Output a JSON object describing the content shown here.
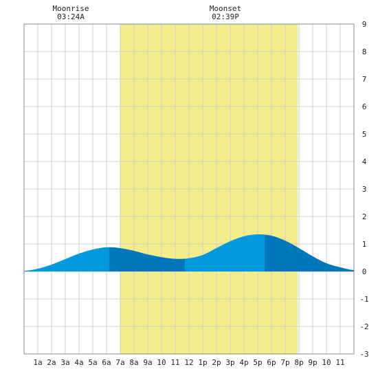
{
  "chart_data": {
    "type": "area",
    "title": "",
    "xlabel": "",
    "ylabel": "",
    "x_tick_labels": [
      "1a",
      "2a",
      "3a",
      "4a",
      "5a",
      "6a",
      "7a",
      "8a",
      "9a",
      "10",
      "11",
      "12",
      "1p",
      "2p",
      "3p",
      "4p",
      "5p",
      "6p",
      "7p",
      "8p",
      "9p",
      "10",
      "11"
    ],
    "xlim_hours": [
      0,
      24
    ],
    "ylim": [
      -3,
      9
    ],
    "y_ticks": [
      -3,
      -2,
      -1,
      0,
      1,
      2,
      3,
      4,
      5,
      6,
      7,
      8,
      9
    ],
    "grid": true,
    "daylight": {
      "start_hour": 7.0,
      "end_hour": 19.9,
      "color": "#f2ec8a"
    },
    "annotations": [
      {
        "label": "Moonrise",
        "time": "03:24A",
        "hour": 3.4
      },
      {
        "label": "Moonset",
        "time": "02:39P",
        "hour": 14.65
      }
    ],
    "extrema": [
      {
        "type": "high",
        "hour": 6.2,
        "value": 0.9
      },
      {
        "type": "low",
        "hour": 11.7,
        "value": 0.45
      },
      {
        "type": "high",
        "hour": 17.5,
        "value": 1.35
      }
    ],
    "series": [
      {
        "hours": [
          0,
          1,
          2,
          3,
          4,
          5,
          6,
          7,
          8,
          9,
          10,
          11,
          12,
          13,
          14,
          15,
          16,
          17,
          18,
          19,
          20,
          21,
          22,
          23,
          24
        ],
        "values": [
          0.02,
          0.1,
          0.25,
          0.45,
          0.65,
          0.8,
          0.88,
          0.85,
          0.75,
          0.62,
          0.52,
          0.46,
          0.48,
          0.6,
          0.85,
          1.1,
          1.28,
          1.35,
          1.3,
          1.12,
          0.85,
          0.55,
          0.3,
          0.15,
          0.05
        ]
      }
    ],
    "colors": {
      "fill_light": "#0099dd",
      "fill_dark": "#0077bb",
      "grid": "#cccccc",
      "frame": "#888888"
    }
  }
}
